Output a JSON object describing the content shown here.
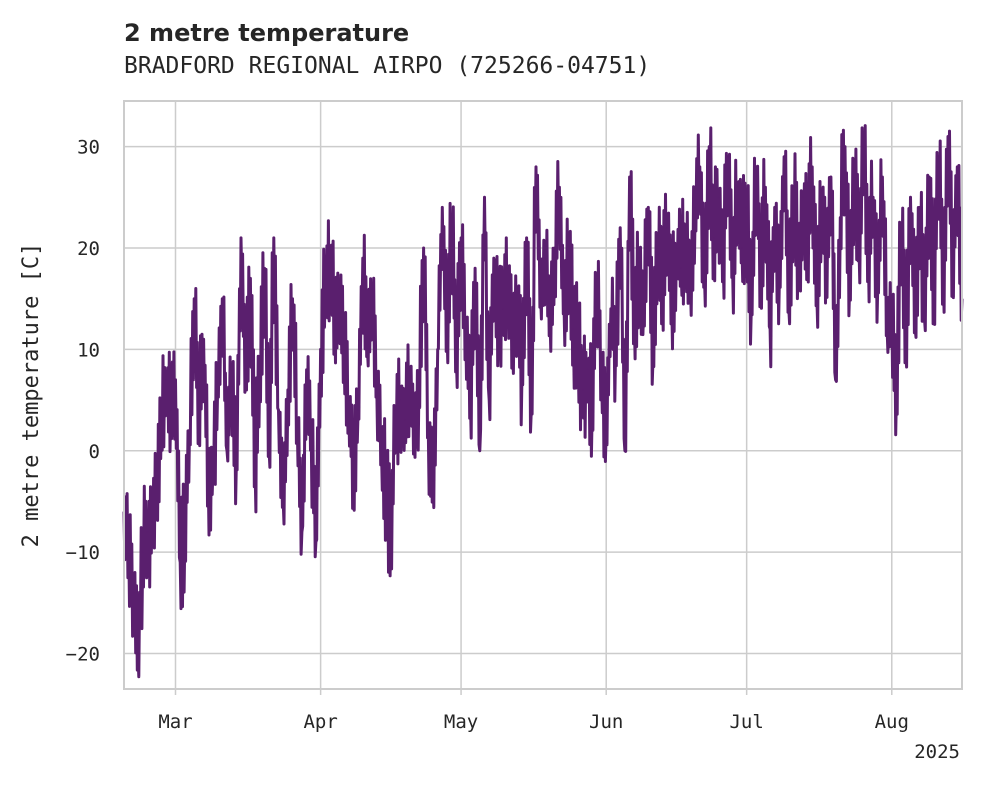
{
  "chart_data": {
    "type": "line",
    "title": "2 metre temperature",
    "subtitle": "BRADFORD REGIONAL AIRPO (725266-04751)",
    "ylabel": "2 metre temperature [C]",
    "xlabel": "",
    "x_start": "2025-02-18",
    "x_end": "2025-08-16",
    "ylim": [
      -23.5,
      34.5
    ],
    "yticks": [
      -20,
      -10,
      0,
      10,
      20,
      30
    ],
    "xticks": [
      {
        "date": "2025-03-01",
        "label": "Mar"
      },
      {
        "date": "2025-04-01",
        "label": "Apr"
      },
      {
        "date": "2025-05-01",
        "label": "May"
      },
      {
        "date": "2025-06-01",
        "label": "Jun"
      },
      {
        "date": "2025-07-01",
        "label": "Jul"
      },
      {
        "date": "2025-08-01",
        "label": "Aug"
      }
    ],
    "year_label": "2025",
    "grid": true,
    "line_color": "#5a1f6e",
    "series": [
      {
        "name": "",
        "points": [
          [
            "2025-02-18",
            -6
          ],
          [
            "2025-02-19",
            -9
          ],
          [
            "2025-02-20",
            -14
          ],
          [
            "2025-02-21",
            -20
          ],
          [
            "2025-02-22",
            -10
          ],
          [
            "2025-02-23",
            -8
          ],
          [
            "2025-02-24",
            -7
          ],
          [
            "2025-02-25",
            -2
          ],
          [
            "2025-02-26",
            3
          ],
          [
            "2025-02-27",
            7
          ],
          [
            "2025-02-28",
            4
          ],
          [
            "2025-03-01",
            7
          ],
          [
            "2025-03-02",
            -11
          ],
          [
            "2025-03-03",
            -8
          ],
          [
            "2025-03-04",
            2
          ],
          [
            "2025-03-05",
            15
          ],
          [
            "2025-03-06",
            5
          ],
          [
            "2025-03-07",
            11
          ],
          [
            "2025-03-08",
            -3
          ],
          [
            "2025-03-09",
            -2
          ],
          [
            "2025-03-10",
            6
          ],
          [
            "2025-03-11",
            15
          ],
          [
            "2025-03-12",
            0
          ],
          [
            "2025-03-13",
            8
          ],
          [
            "2025-03-14",
            -1
          ],
          [
            "2025-03-15",
            21
          ],
          [
            "2025-03-16",
            8
          ],
          [
            "2025-03-17",
            17
          ],
          [
            "2025-03-18",
            -2
          ],
          [
            "2025-03-19",
            9
          ],
          [
            "2025-03-20",
            18
          ],
          [
            "2025-03-21",
            0
          ],
          [
            "2025-03-22",
            21
          ],
          [
            "2025-03-23",
            4
          ],
          [
            "2025-03-24",
            -5
          ],
          [
            "2025-03-25",
            6
          ],
          [
            "2025-03-26",
            15
          ],
          [
            "2025-03-27",
            3
          ],
          [
            "2025-03-28",
            -8
          ],
          [
            "2025-03-29",
            8
          ],
          [
            "2025-03-30",
            1
          ],
          [
            "2025-03-31",
            -9
          ],
          [
            "2025-04-01",
            10
          ],
          [
            "2025-04-02",
            17
          ],
          [
            "2025-04-03",
            19
          ],
          [
            "2025-04-04",
            13
          ],
          [
            "2025-04-05",
            16
          ],
          [
            "2025-04-06",
            10
          ],
          [
            "2025-04-07",
            5
          ],
          [
            "2025-04-08",
            -1
          ],
          [
            "2025-04-09",
            4
          ],
          [
            "2025-04-10",
            19
          ],
          [
            "2025-04-11",
            10
          ],
          [
            "2025-04-12",
            16
          ],
          [
            "2025-04-13",
            6
          ],
          [
            "2025-04-14",
            0
          ],
          [
            "2025-04-15",
            -4
          ],
          [
            "2025-04-16",
            -8
          ],
          [
            "2025-04-17",
            4
          ],
          [
            "2025-04-18",
            5
          ],
          [
            "2025-04-19",
            3
          ],
          [
            "2025-04-20",
            8
          ],
          [
            "2025-04-21",
            2
          ],
          [
            "2025-04-22",
            6
          ],
          [
            "2025-04-23",
            20
          ],
          [
            "2025-04-24",
            2
          ],
          [
            "2025-04-25",
            -3
          ],
          [
            "2025-04-26",
            10
          ],
          [
            "2025-04-27",
            24
          ],
          [
            "2025-04-28",
            12
          ],
          [
            "2025-04-29",
            23
          ],
          [
            "2025-04-30",
            9
          ],
          [
            "2025-05-01",
            21
          ],
          [
            "2025-05-02",
            12
          ],
          [
            "2025-05-03",
            5
          ],
          [
            "2025-05-04",
            18
          ],
          [
            "2025-05-05",
            0
          ],
          [
            "2025-05-06",
            25
          ],
          [
            "2025-05-07",
            5
          ],
          [
            "2025-05-08",
            19
          ],
          [
            "2025-05-09",
            12
          ],
          [
            "2025-05-10",
            14
          ],
          [
            "2025-05-11",
            18
          ],
          [
            "2025-05-12",
            10
          ],
          [
            "2025-05-13",
            16
          ],
          [
            "2025-05-14",
            7
          ],
          [
            "2025-05-15",
            21
          ],
          [
            "2025-05-16",
            4
          ],
          [
            "2025-05-17",
            28
          ],
          [
            "2025-05-18",
            15
          ],
          [
            "2025-05-19",
            19
          ],
          [
            "2025-05-20",
            13
          ],
          [
            "2025-05-21",
            20
          ],
          [
            "2025-05-22",
            26
          ],
          [
            "2025-05-23",
            14
          ],
          [
            "2025-05-24",
            20
          ],
          [
            "2025-05-25",
            12
          ],
          [
            "2025-05-26",
            10
          ],
          [
            "2025-05-27",
            6
          ],
          [
            "2025-05-28",
            8
          ],
          [
            "2025-05-29",
            4
          ],
          [
            "2025-05-30",
            17
          ],
          [
            "2025-05-31",
            8
          ],
          [
            "2025-06-01",
            2
          ],
          [
            "2025-06-02",
            14
          ],
          [
            "2025-06-03",
            10
          ],
          [
            "2025-06-04",
            22
          ],
          [
            "2025-06-05",
            0
          ],
          [
            "2025-06-06",
            27
          ],
          [
            "2025-06-07",
            13
          ],
          [
            "2025-06-08",
            19
          ],
          [
            "2025-06-09",
            14
          ],
          [
            "2025-06-10",
            24
          ],
          [
            "2025-06-11",
            9
          ],
          [
            "2025-06-12",
            20
          ],
          [
            "2025-06-13",
            16
          ],
          [
            "2025-06-14",
            22
          ],
          [
            "2025-06-15",
            15
          ],
          [
            "2025-06-16",
            20
          ],
          [
            "2025-06-17",
            18
          ],
          [
            "2025-06-18",
            21
          ],
          [
            "2025-06-19",
            16
          ],
          [
            "2025-06-20",
            24
          ],
          [
            "2025-06-21",
            28
          ],
          [
            "2025-06-22",
            17
          ],
          [
            "2025-06-23",
            30
          ],
          [
            "2025-06-24",
            21
          ],
          [
            "2025-06-25",
            25
          ],
          [
            "2025-06-26",
            19
          ],
          [
            "2025-06-27",
            29
          ],
          [
            "2025-06-28",
            18
          ],
          [
            "2025-06-29",
            26
          ],
          [
            "2025-06-30",
            20
          ],
          [
            "2025-07-01",
            24
          ],
          [
            "2025-07-02",
            14
          ],
          [
            "2025-07-03",
            28
          ],
          [
            "2025-07-04",
            18
          ],
          [
            "2025-07-05",
            26
          ],
          [
            "2025-07-06",
            12
          ],
          [
            "2025-07-07",
            24
          ],
          [
            "2025-07-08",
            17
          ],
          [
            "2025-07-09",
            29
          ],
          [
            "2025-07-10",
            14
          ],
          [
            "2025-07-11",
            26
          ],
          [
            "2025-07-12",
            18
          ],
          [
            "2025-07-13",
            25
          ],
          [
            "2025-07-14",
            21
          ],
          [
            "2025-07-15",
            28
          ],
          [
            "2025-07-16",
            15
          ],
          [
            "2025-07-17",
            24
          ],
          [
            "2025-07-18",
            19
          ],
          [
            "2025-07-19",
            27
          ],
          [
            "2025-07-20",
            7
          ],
          [
            "2025-07-21",
            23
          ],
          [
            "2025-07-22",
            30
          ],
          [
            "2025-07-23",
            16
          ],
          [
            "2025-07-24",
            27
          ],
          [
            "2025-07-25",
            20
          ],
          [
            "2025-07-26",
            30
          ],
          [
            "2025-07-27",
            19
          ],
          [
            "2025-07-28",
            25
          ],
          [
            "2025-07-29",
            16
          ],
          [
            "2025-07-30",
            27
          ],
          [
            "2025-07-31",
            12
          ],
          [
            "2025-08-01",
            14
          ],
          [
            "2025-08-02",
            6
          ],
          [
            "2025-08-03",
            22
          ],
          [
            "2025-08-04",
            10
          ],
          [
            "2025-08-05",
            25
          ],
          [
            "2025-08-06",
            12
          ],
          [
            "2025-08-07",
            24
          ],
          [
            "2025-08-08",
            13
          ],
          [
            "2025-08-09",
            27
          ],
          [
            "2025-08-10",
            15
          ],
          [
            "2025-08-11",
            29
          ],
          [
            "2025-08-12",
            17
          ],
          [
            "2025-08-13",
            31
          ],
          [
            "2025-08-14",
            18
          ],
          [
            "2025-08-15",
            28
          ],
          [
            "2025-08-16",
            15
          ]
        ]
      }
    ]
  }
}
